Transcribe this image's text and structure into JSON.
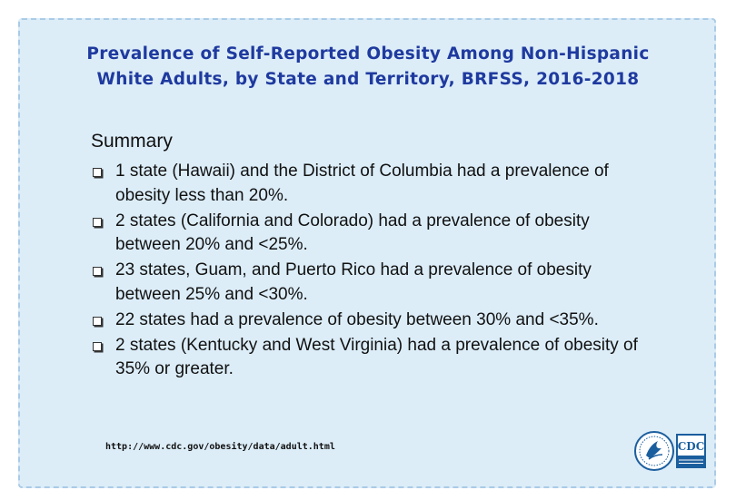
{
  "title": {
    "line1": "Prevalence of Self-Reported Obesity Among Non-Hispanic",
    "line2": "White Adults, by State and Territory, BRFSS, 2016-2018"
  },
  "summary": {
    "heading": "Summary",
    "items": [
      "1 state (Hawaii) and the District of Columbia had a prevalence of obesity less than 20%.",
      "2 states (California and Colorado) had a prevalence of obesity between 20% and <25%.",
      "23 states, Guam, and Puerto Rico had a prevalence of obesity between 25% and <30%.",
      "22 states had a prevalence of obesity between 30% and <35%.",
      "2 states (Kentucky and West Virginia) had a prevalence of obesity of 35% or greater."
    ]
  },
  "source_url": "http://www.cdc.gov/obesity/data/adult.html",
  "logos": {
    "hhs": "hhs-eagle-logo",
    "cdc_text": "CDC"
  },
  "colors": {
    "title": "#1f3a9f",
    "background": "#dcedf8",
    "cdc_blue": "#1b5e9e"
  }
}
